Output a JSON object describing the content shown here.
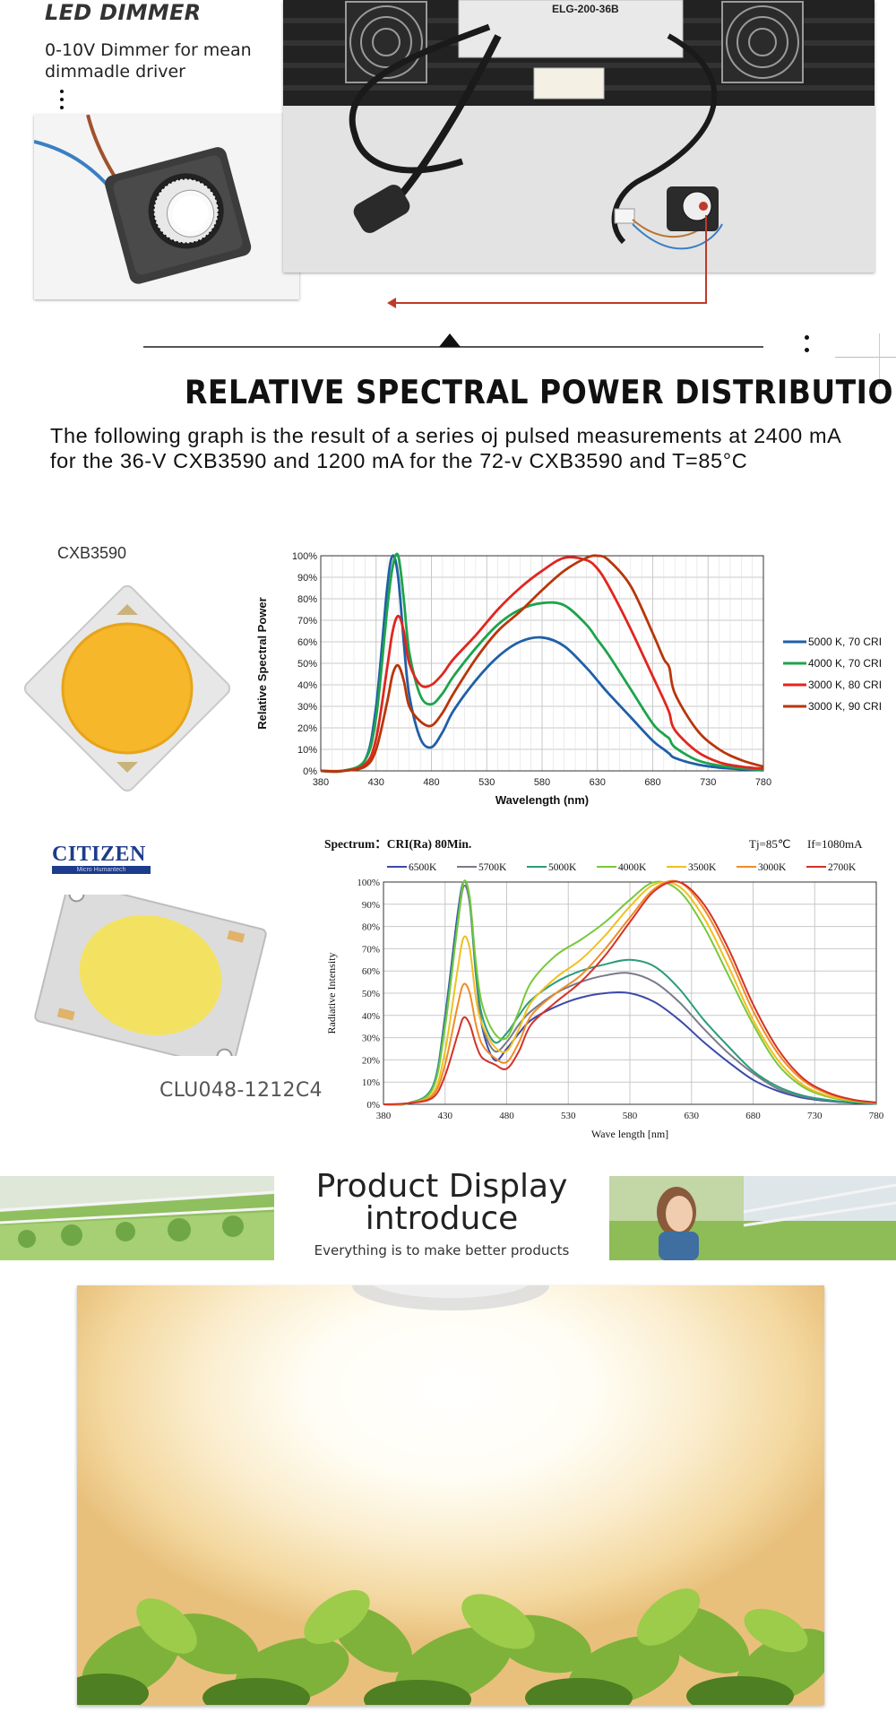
{
  "dimmer_section": {
    "title": "LED DIMMER",
    "subtitle": "0-10V Dimmer for mean dimmadle driver",
    "driver_label": "ELG-200-36B"
  },
  "spectral_section": {
    "heading": "RELATIVE SPECTRAL POWER DISTRIBUTION",
    "paragraph": "The following graph is the result of a series oj pulsed measurements at 2400 mA for the 36-V CXB3590 and 1200 mA for the 72-v CXB3590 and T=85°C",
    "chip1_label": "CXB3590",
    "chip2_brand": "CITIZEN",
    "chip2_brand_tag": "Micro Humantech",
    "chip2_label": "CLU048-1212C4"
  },
  "chart_data": [
    {
      "type": "line",
      "title": "",
      "xlabel": "Wavelength (nm)",
      "ylabel": "Relative Spectral Power",
      "xlim": [
        380,
        780
      ],
      "ylim": [
        0,
        100
      ],
      "x_ticks": [
        "380",
        "430",
        "480",
        "530",
        "580",
        "630",
        "680",
        "730",
        "780"
      ],
      "y_ticks": [
        "0%",
        "10%",
        "20%",
        "30%",
        "40%",
        "50%",
        "60%",
        "70%",
        "80%",
        "90%",
        "100%"
      ],
      "grid": true,
      "legend": "right",
      "x": [
        380,
        400,
        420,
        430,
        440,
        445,
        450,
        455,
        460,
        470,
        480,
        490,
        500,
        520,
        540,
        560,
        580,
        600,
        620,
        630,
        640,
        660,
        680,
        690,
        695,
        700,
        720,
        740,
        760,
        780
      ],
      "series": [
        {
          "name": "5000 K, 70 CRI",
          "color": "#1f5fa8",
          "values": [
            0,
            0,
            5,
            30,
            85,
            100,
            90,
            60,
            35,
            15,
            11,
            18,
            28,
            42,
            53,
            60,
            62,
            58,
            48,
            42,
            36,
            25,
            14,
            10,
            8,
            6,
            3,
            1.5,
            0.8,
            0.3
          ]
        },
        {
          "name": "4000 K, 70 CRI",
          "color": "#1ea34c",
          "values": [
            0,
            0,
            5,
            25,
            75,
            95,
            100,
            80,
            55,
            35,
            31,
            36,
            44,
            57,
            68,
            75,
            78,
            77,
            68,
            61,
            54,
            38,
            22,
            17,
            15,
            11,
            5,
            2.5,
            1.2,
            0.5
          ]
        },
        {
          "name": "3000 K, 80 CRI",
          "color": "#e0261f",
          "values": [
            0,
            0,
            3,
            15,
            48,
            65,
            72,
            65,
            50,
            40,
            40,
            45,
            52,
            63,
            75,
            85,
            93,
            99,
            98,
            94,
            86,
            66,
            44,
            33,
            27,
            19,
            9,
            4,
            2,
            1
          ]
        },
        {
          "name": "3000 K, 90 CRI",
          "color": "#b8360a",
          "values": [
            0,
            0,
            2,
            10,
            32,
            45,
            49,
            42,
            30,
            23,
            21,
            27,
            36,
            52,
            65,
            74,
            84,
            93,
            99,
            100,
            98,
            86,
            64,
            52,
            48,
            36,
            19,
            10,
            5,
            2
          ]
        }
      ]
    },
    {
      "type": "line",
      "title": "Spectrum：CRI(Ra) 80Min.",
      "annotations": [
        "Tj=85℃",
        "If=1080mA"
      ],
      "xlabel": "Wave length [nm]",
      "ylabel": "Radiative Intensity",
      "xlim": [
        380,
        780
      ],
      "ylim": [
        0,
        100
      ],
      "x_ticks": [
        "380",
        "430",
        "480",
        "530",
        "580",
        "630",
        "680",
        "730",
        "780"
      ],
      "y_ticks": [
        "0%",
        "10%",
        "20%",
        "30%",
        "40%",
        "50%",
        "60%",
        "70%",
        "80%",
        "90%",
        "100%"
      ],
      "grid": true,
      "legend": "top",
      "x": [
        380,
        400,
        420,
        430,
        440,
        445,
        450,
        455,
        460,
        470,
        480,
        490,
        500,
        520,
        540,
        560,
        580,
        600,
        620,
        640,
        660,
        680,
        700,
        720,
        740,
        760,
        780
      ],
      "series": [
        {
          "name": "6500K",
          "color": "#3b4aa8",
          "values": [
            0,
            0.5,
            8,
            40,
            85,
            100,
            92,
            60,
            35,
            20,
            25,
            32,
            38,
            44,
            48,
            50,
            50,
            46,
            38,
            28,
            19,
            11,
            6,
            3,
            1.5,
            0.7,
            0.3
          ]
        },
        {
          "name": "5700K",
          "color": "#7a7a8a",
          "values": [
            0,
            0.5,
            8,
            38,
            80,
            98,
            90,
            58,
            36,
            24,
            28,
            36,
            42,
            50,
            55,
            58,
            59,
            55,
            46,
            34,
            23,
            14,
            7,
            3.5,
            1.8,
            0.8,
            0.3
          ]
        },
        {
          "name": "5000K",
          "color": "#2a9c7a",
          "values": [
            0,
            0.5,
            8,
            38,
            82,
            100,
            92,
            60,
            40,
            28,
            32,
            40,
            47,
            55,
            60,
            63,
            65,
            62,
            52,
            38,
            26,
            15,
            8,
            4,
            2,
            0.9,
            0.3
          ]
        },
        {
          "name": "4000K",
          "color": "#78c83c",
          "values": [
            0,
            0.5,
            7,
            35,
            80,
            100,
            93,
            64,
            45,
            32,
            30,
            42,
            55,
            67,
            74,
            82,
            92,
            100,
            96,
            80,
            58,
            36,
            18,
            8,
            3.5,
            1.5,
            0.5
          ]
        },
        {
          "name": "3500K",
          "color": "#f0c020",
          "values": [
            0,
            0.5,
            5,
            24,
            60,
            75,
            70,
            48,
            36,
            26,
            24,
            34,
            46,
            57,
            65,
            76,
            89,
            99,
            98,
            84,
            62,
            38,
            20,
            9,
            4,
            1.8,
            0.6
          ]
        },
        {
          "name": "3000K",
          "color": "#f08c28",
          "values": [
            0,
            0.5,
            4,
            18,
            44,
            54,
            50,
            36,
            27,
            21,
            19,
            28,
            40,
            50,
            58,
            70,
            84,
            97,
            100,
            88,
            67,
            42,
            23,
            11,
            5,
            2,
            0.7
          ]
        },
        {
          "name": "2700K",
          "color": "#d23228",
          "values": [
            0,
            0.5,
            3,
            13,
            31,
            39,
            36,
            27,
            21,
            18,
            16,
            24,
            36,
            46,
            55,
            67,
            82,
            96,
            100,
            90,
            70,
            45,
            25,
            12,
            5.5,
            2.2,
            0.8
          ]
        }
      ]
    }
  ],
  "product_display": {
    "title_line1": "Product Display",
    "title_line2": "introduce",
    "subtitle": "Everything is to make better products"
  }
}
